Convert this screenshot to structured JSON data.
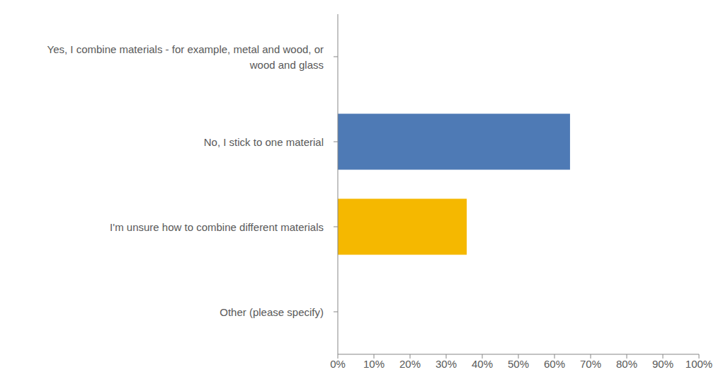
{
  "chart_data": {
    "type": "bar",
    "orientation": "horizontal",
    "categories": [
      "Yes, I combine materials - for example, metal and wood, or wood and glass",
      "No, I stick to one material",
      "I'm unsure how to combine different materials",
      "Other (please specify)"
    ],
    "values": [
      0,
      64.3,
      35.7,
      0
    ],
    "colors": [
      "#4e7ab5",
      "#4e7ab5",
      "#f5b800",
      "#f5b800"
    ],
    "xlim": [
      0,
      100
    ],
    "xticks": [
      {
        "value": 0,
        "label": "0%"
      },
      {
        "value": 10,
        "label": "10%"
      },
      {
        "value": 20,
        "label": "20%"
      },
      {
        "value": 30,
        "label": "30%"
      },
      {
        "value": 40,
        "label": "40%"
      },
      {
        "value": 50,
        "label": "50%"
      },
      {
        "value": 60,
        "label": "60%"
      },
      {
        "value": 70,
        "label": "70%"
      },
      {
        "value": 80,
        "label": "80%"
      },
      {
        "value": 90,
        "label": "90%"
      },
      {
        "value": 100,
        "label": "100%"
      }
    ],
    "grid": false,
    "data_labels": false
  }
}
